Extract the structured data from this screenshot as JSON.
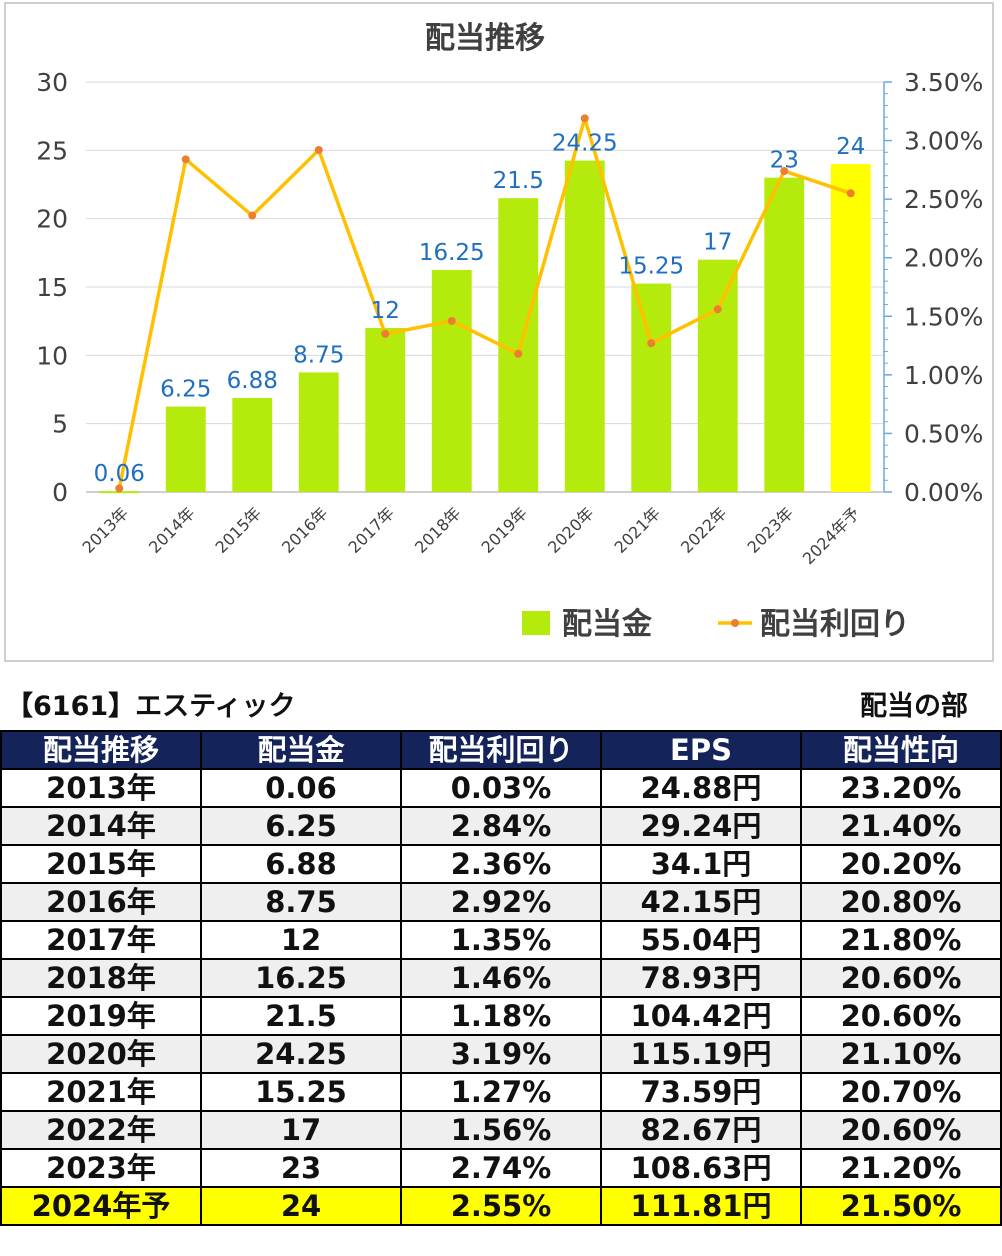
{
  "chart_data": {
    "type": "bar+line",
    "title": "配当推移",
    "categories": [
      "2013年",
      "2014年",
      "2015年",
      "2016年",
      "2017年",
      "2018年",
      "2019年",
      "2020年",
      "2021年",
      "2022年",
      "2023年",
      "2024年予"
    ],
    "series": [
      {
        "name": "配当金",
        "type": "bar",
        "axis": "left",
        "values": [
          0.06,
          6.25,
          6.88,
          8.75,
          12,
          16.25,
          21.5,
          24.25,
          15.25,
          17,
          23,
          24
        ],
        "labels": [
          "0.06",
          "6.25",
          "6.88",
          "8.75",
          "12",
          "16.25",
          "21.5",
          "24.25",
          "15.25",
          "17",
          "23",
          "24"
        ],
        "color": "#b5eb0c",
        "highlight_color": "#ffff00",
        "highlight_index": 11
      },
      {
        "name": "配当利回り",
        "type": "line",
        "axis": "right",
        "values": [
          0.03,
          2.84,
          2.36,
          2.92,
          1.35,
          1.46,
          1.18,
          3.19,
          1.27,
          1.56,
          2.74,
          2.55
        ],
        "color": "#ffc000",
        "marker_color": "#ed7d31"
      }
    ],
    "y_left": {
      "range": [
        0,
        30
      ],
      "ticks": [
        "0",
        "5",
        "10",
        "15",
        "20",
        "25",
        "30"
      ]
    },
    "y_right": {
      "range": [
        0,
        3.5
      ],
      "ticks": [
        "0.00%",
        "0.50%",
        "1.00%",
        "1.50%",
        "2.00%",
        "2.50%",
        "3.00%",
        "3.50%"
      ]
    },
    "legend_position": "bottom-right",
    "label_color": "#1f6fc0"
  },
  "stock_title": "【6161】エスティック",
  "section_title": "配当の部",
  "table": {
    "headers": [
      "配当推移",
      "配当金",
      "配当利回り",
      "EPS",
      "配当性向"
    ],
    "rows": [
      [
        "2013年",
        "0.06",
        "0.03%",
        "24.88円",
        "23.20%"
      ],
      [
        "2014年",
        "6.25",
        "2.84%",
        "29.24円",
        "21.40%"
      ],
      [
        "2015年",
        "6.88",
        "2.36%",
        "34.1円",
        "20.20%"
      ],
      [
        "2016年",
        "8.75",
        "2.92%",
        "42.15円",
        "20.80%"
      ],
      [
        "2017年",
        "12",
        "1.35%",
        "55.04円",
        "21.80%"
      ],
      [
        "2018年",
        "16.25",
        "1.46%",
        "78.93円",
        "20.60%"
      ],
      [
        "2019年",
        "21.5",
        "1.18%",
        "104.42円",
        "20.60%"
      ],
      [
        "2020年",
        "24.25",
        "3.19%",
        "115.19円",
        "21.10%"
      ],
      [
        "2021年",
        "15.25",
        "1.27%",
        "73.59円",
        "20.70%"
      ],
      [
        "2022年",
        "17",
        "1.56%",
        "82.67円",
        "20.60%"
      ],
      [
        "2023年",
        "23",
        "2.74%",
        "108.63円",
        "21.20%"
      ],
      [
        "2024年予",
        "24",
        "2.55%",
        "111.81円",
        "21.50%"
      ]
    ]
  }
}
